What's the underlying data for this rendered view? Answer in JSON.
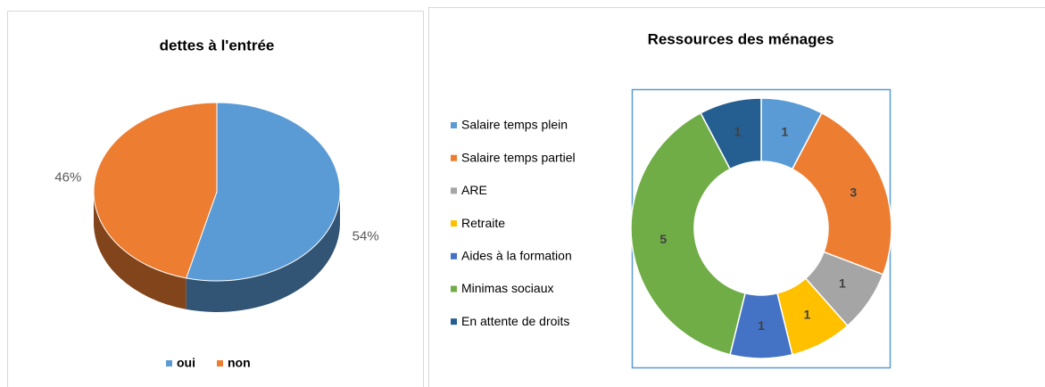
{
  "chart_data": [
    {
      "type": "pie3d",
      "title": "dettes à l'entrée",
      "categories": [
        "oui",
        "non"
      ],
      "values": [
        54,
        46
      ],
      "value_labels": [
        "54%",
        "46%"
      ],
      "colors": [
        "#5b9bd5",
        "#ed7d31"
      ],
      "legend": "bottom"
    },
    {
      "type": "donut",
      "title": "Ressources des ménages",
      "categories": [
        "Salaire temps plein",
        "Salaire temps partiel",
        "ARE",
        "Retraite",
        "Aides à la formation",
        "Minimas sociaux",
        "En attente de droits"
      ],
      "values": [
        1,
        3,
        1,
        1,
        1,
        5,
        1
      ],
      "colors": [
        "#5b9bd5",
        "#ed7d31",
        "#a5a5a5",
        "#ffc000",
        "#4472c4",
        "#70ad47",
        "#255e91"
      ],
      "legend": "left"
    }
  ]
}
